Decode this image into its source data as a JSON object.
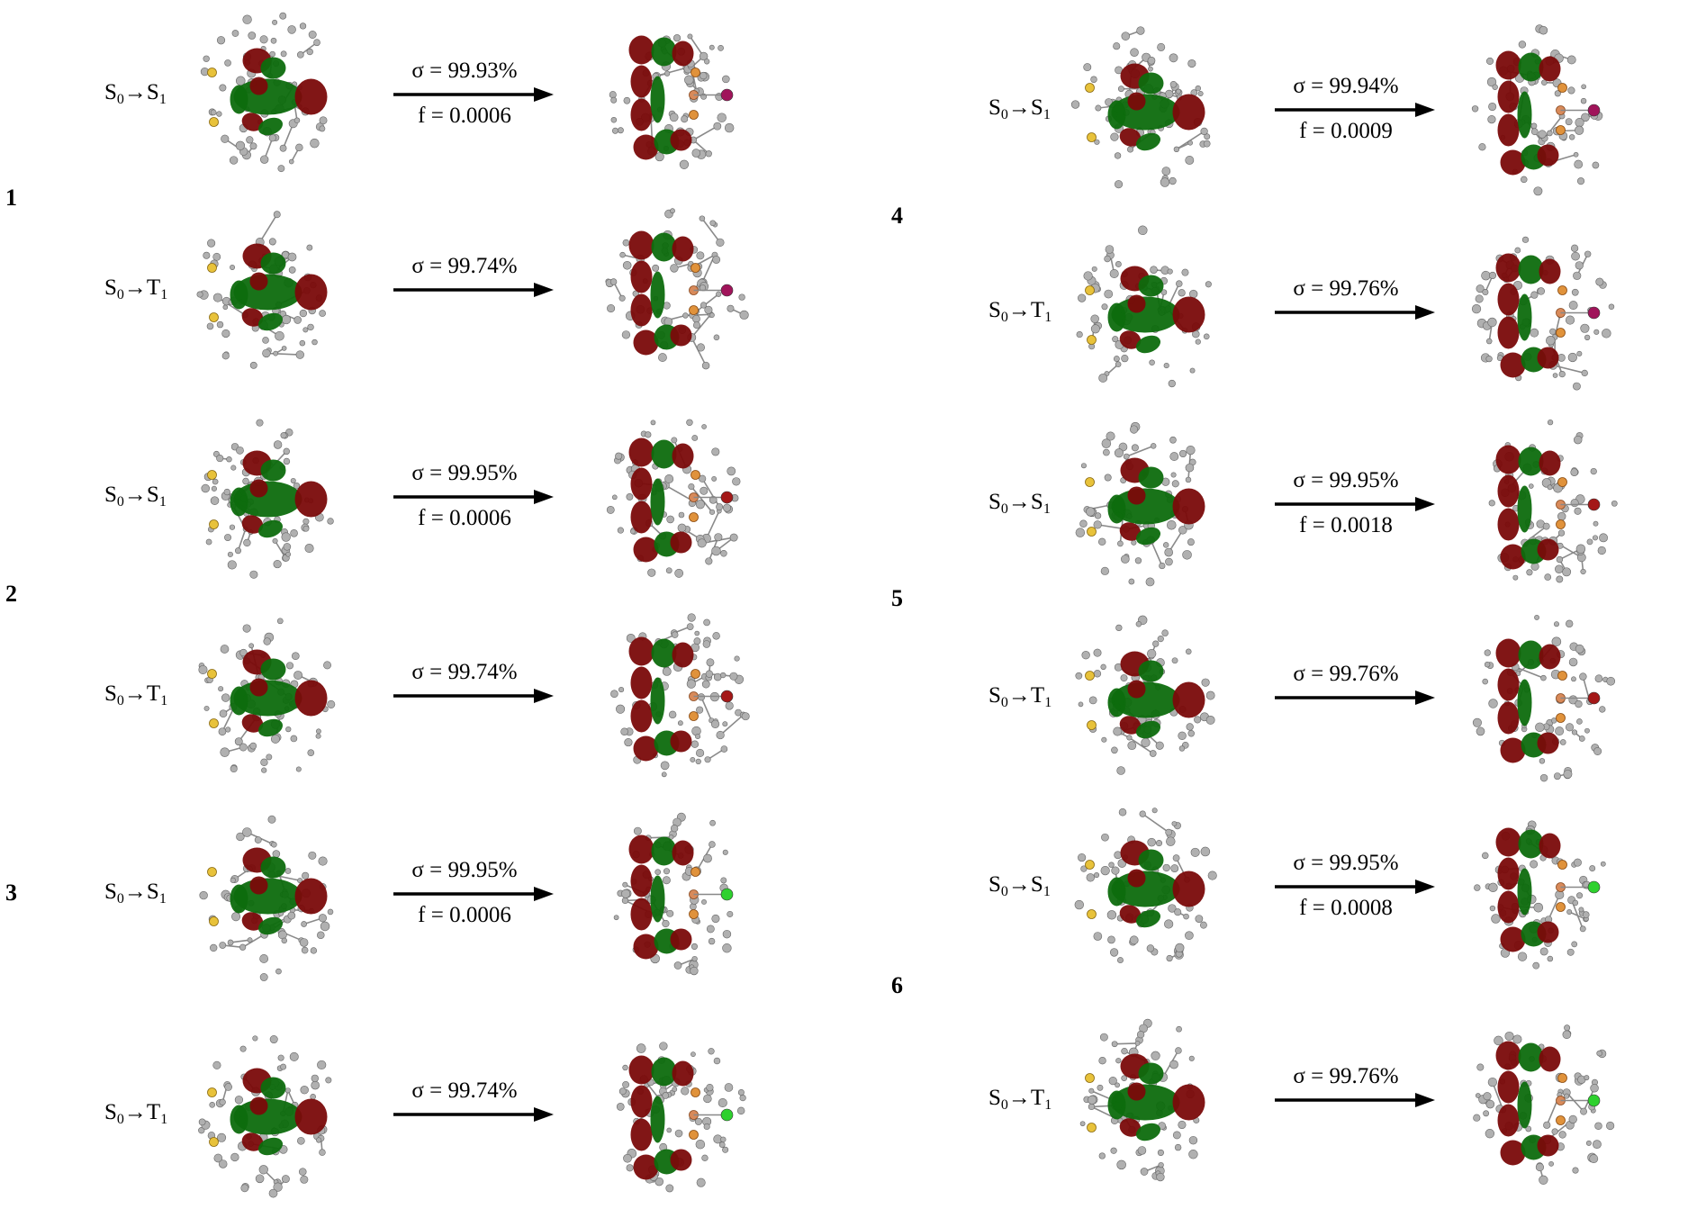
{
  "colors": {
    "orbital_red": "#7a0a0a",
    "orbital_green": "#0d6b0d",
    "atom_grey": "#b0b0b0",
    "atom_sulfur": "#e8c23a",
    "atom_phosphorus": "#e0923b",
    "halide_iodine": "#a0145a",
    "halide_bromine": "#a41818",
    "halide_chlorine": "#2ed12e"
  },
  "compounds": [
    {
      "label": "1",
      "rows": [
        {
          "from": "S",
          "from_sub": "0",
          "arrow": "→",
          "to": "S",
          "to_sub": "1",
          "sigma": "σ = 99.93%",
          "f": "f = 0.0006",
          "halide": "halide_iodine"
        },
        {
          "from": "S",
          "from_sub": "0",
          "arrow": "→",
          "to": "T",
          "to_sub": "1",
          "sigma": "σ = 99.74%",
          "f": "",
          "halide": "halide_iodine"
        }
      ]
    },
    {
      "label": "2",
      "rows": [
        {
          "from": "S",
          "from_sub": "0",
          "arrow": "→",
          "to": "S",
          "to_sub": "1",
          "sigma": "σ = 99.95%",
          "f": "f = 0.0006",
          "halide": "halide_bromine"
        },
        {
          "from": "S",
          "from_sub": "0",
          "arrow": "→",
          "to": "T",
          "to_sub": "1",
          "sigma": "σ = 99.74%",
          "f": "",
          "halide": "halide_bromine"
        }
      ]
    },
    {
      "label": "3",
      "rows": [
        {
          "from": "S",
          "from_sub": "0",
          "arrow": "→",
          "to": "S",
          "to_sub": "1",
          "sigma": "σ = 99.95%",
          "f": "f = 0.0006",
          "halide": "halide_chlorine"
        },
        {
          "from": "S",
          "from_sub": "0",
          "arrow": "→",
          "to": "T",
          "to_sub": "1",
          "sigma": "σ = 99.74%",
          "f": "",
          "halide": "halide_chlorine"
        }
      ]
    },
    {
      "label": "4",
      "rows": [
        {
          "from": "S",
          "from_sub": "0",
          "arrow": "→",
          "to": "S",
          "to_sub": "1",
          "sigma": "σ = 99.94%",
          "f": "f = 0.0009",
          "halide": "halide_iodine"
        },
        {
          "from": "S",
          "from_sub": "0",
          "arrow": "→",
          "to": "T",
          "to_sub": "1",
          "sigma": "σ = 99.76%",
          "f": "",
          "halide": "halide_iodine"
        }
      ]
    },
    {
      "label": "5",
      "rows": [
        {
          "from": "S",
          "from_sub": "0",
          "arrow": "→",
          "to": "S",
          "to_sub": "1",
          "sigma": "σ = 99.95%",
          "f": "f = 0.0018",
          "halide": "halide_bromine"
        },
        {
          "from": "S",
          "from_sub": "0",
          "arrow": "→",
          "to": "T",
          "to_sub": "1",
          "sigma": "σ = 99.76%",
          "f": "",
          "halide": "halide_bromine"
        }
      ]
    },
    {
      "label": "6",
      "rows": [
        {
          "from": "S",
          "from_sub": "0",
          "arrow": "→",
          "to": "S",
          "to_sub": "1",
          "sigma": "σ = 99.95%",
          "f": "f = 0.0008",
          "halide": "halide_chlorine"
        },
        {
          "from": "S",
          "from_sub": "0",
          "arrow": "→",
          "to": "T",
          "to_sub": "1",
          "sigma": "σ = 99.76%",
          "f": "",
          "halide": "halide_chlorine"
        }
      ]
    }
  ]
}
